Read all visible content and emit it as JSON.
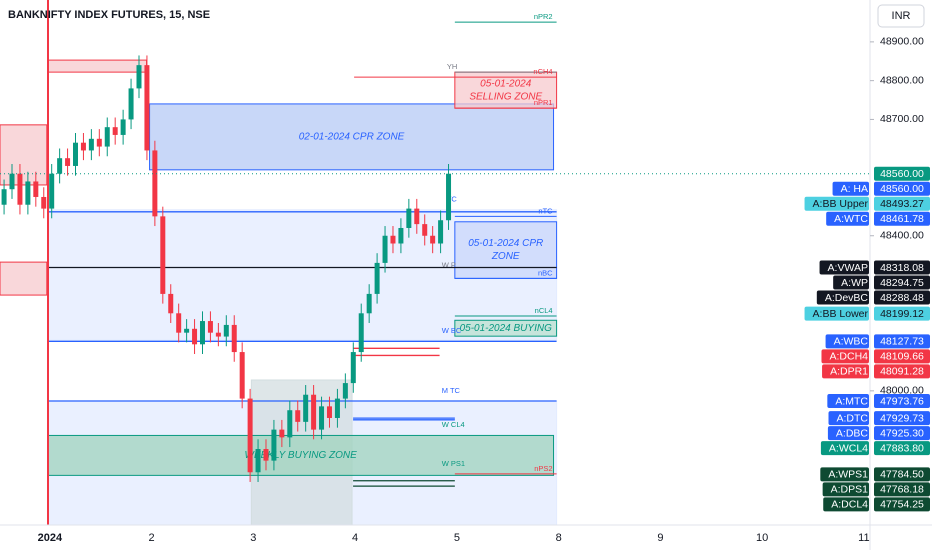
{
  "header": {
    "title": "BANKNIFTY INDEX FUTURES, 15, NSE",
    "currency": "INR"
  },
  "chart_data": {
    "type": "candlestick",
    "xlim": [
      -0.49,
      8.06
    ],
    "ylim": [
      47654,
      49008
    ],
    "xticks": [
      {
        "value": 0,
        "label": "2024"
      },
      {
        "value": 1,
        "label": "2"
      },
      {
        "value": 2,
        "label": "3"
      },
      {
        "value": 3,
        "label": "4"
      },
      {
        "value": 4,
        "label": "5"
      },
      {
        "value": 5,
        "label": "8"
      },
      {
        "value": 6,
        "label": "9"
      },
      {
        "value": 7,
        "label": "10"
      },
      {
        "value": 8,
        "label": "11"
      }
    ],
    "yticks": [
      {
        "value": 48000,
        "label": "48000.00"
      },
      {
        "value": 48400,
        "label": "48400.00"
      },
      {
        "value": 48700,
        "label": "48700.00"
      },
      {
        "value": 48800,
        "label": "48800.00"
      },
      {
        "value": 48900,
        "label": "48900.00"
      }
    ],
    "up_color": "#089981",
    "down_color": "#f23645",
    "x": [
      -0.45,
      -0.372,
      -0.294,
      -0.216,
      -0.138,
      -0.06,
      0.018,
      0.096,
      0.174,
      0.252,
      0.33,
      0.408,
      0.486,
      0.564,
      0.642,
      0.72,
      0.798,
      0.876,
      0.954,
      1.032,
      1.11,
      1.188,
      1.266,
      1.344,
      1.422,
      1.5,
      1.578,
      1.656,
      1.734,
      1.812,
      1.89,
      1.968,
      2.046,
      2.124,
      2.202,
      2.28,
      2.358,
      2.436,
      2.514,
      2.592,
      2.67,
      2.748,
      2.826,
      2.904,
      2.982,
      3.06,
      3.138,
      3.216,
      3.294,
      3.372,
      3.45,
      3.528,
      3.606,
      3.684,
      3.762,
      3.84,
      3.918
    ],
    "open": [
      48480,
      48520,
      48560,
      48480,
      48540,
      48500,
      48470,
      48560,
      48600,
      48580,
      48640,
      48620,
      48650,
      48630,
      48680,
      48660,
      48700,
      48780,
      48840,
      48620,
      48450,
      48250,
      48200,
      48150,
      48160,
      48120,
      48180,
      48150,
      48140,
      48170,
      48100,
      47980,
      47790,
      47850,
      47820,
      47900,
      47880,
      47950,
      47920,
      47990,
      47900,
      47960,
      47930,
      47980,
      48020,
      48100,
      48200,
      48250,
      48330,
      48400,
      48380,
      48420,
      48470,
      48430,
      48400,
      48380,
      48440
    ],
    "high": [
      48545,
      48585,
      48585,
      48565,
      48565,
      48525,
      48585,
      48625,
      48625,
      48665,
      48665,
      48675,
      48675,
      48705,
      48705,
      48725,
      48805,
      48865,
      48865,
      48645,
      48475,
      48275,
      48225,
      48185,
      48185,
      48205,
      48205,
      48175,
      48195,
      48195,
      48125,
      48005,
      47875,
      47875,
      47925,
      47925,
      47975,
      47975,
      48015,
      48015,
      47985,
      47985,
      48005,
      48045,
      48125,
      48225,
      48275,
      48355,
      48425,
      48425,
      48445,
      48495,
      48495,
      48455,
      48425,
      48465,
      48585
    ],
    "low": [
      48455,
      48495,
      48455,
      48455,
      48475,
      48445,
      48445,
      48535,
      48555,
      48555,
      48595,
      48595,
      48605,
      48605,
      48635,
      48635,
      48675,
      48755,
      48595,
      48425,
      48225,
      48175,
      48125,
      48125,
      48095,
      48095,
      48125,
      48115,
      48115,
      48075,
      47955,
      47765,
      47765,
      47795,
      47795,
      47855,
      47855,
      47895,
      47895,
      47875,
      47875,
      47905,
      47905,
      47955,
      47995,
      48075,
      48175,
      48225,
      48305,
      48355,
      48355,
      48395,
      48405,
      48375,
      48355,
      48355,
      48415
    ],
    "close": [
      48520,
      48560,
      48480,
      48540,
      48500,
      48470,
      48560,
      48600,
      48580,
      48640,
      48620,
      48650,
      48630,
      48680,
      48660,
      48700,
      48780,
      48840,
      48620,
      48450,
      48250,
      48200,
      48150,
      48160,
      48120,
      48180,
      48150,
      48140,
      48170,
      48100,
      47980,
      47790,
      47850,
      47820,
      47900,
      47880,
      47950,
      47920,
      47990,
      47900,
      47960,
      47930,
      47980,
      48020,
      48100,
      48200,
      48250,
      48330,
      48400,
      48380,
      48420,
      48470,
      48430,
      48400,
      48380,
      48440,
      48560
    ],
    "zones": [
      {
        "low": 47654,
        "high": 47974,
        "x": [
          -0.02,
          4.98
        ],
        "fill": "#e3ebff",
        "stroke": "#e3ebff"
      },
      {
        "low": 48131,
        "high": 48467,
        "x": [
          -0.02,
          4.98
        ],
        "fill": "#e3ebff",
        "stroke": "#e3ebff"
      },
      {
        "low": 47654,
        "high": 48028,
        "x": [
          1.98,
          2.97
        ],
        "fill": "#d3dde0",
        "stroke": "#d3dde0"
      },
      {
        "low": 48531,
        "high": 48686,
        "x": [
          -0.49,
          -0.03
        ],
        "fill": "#f7c9cd",
        "stroke": "#f23645"
      },
      {
        "low": 48247,
        "high": 48332,
        "x": [
          -0.49,
          -0.03
        ],
        "fill": "#f7c9cd",
        "stroke": "#f23645"
      },
      {
        "low": 48822,
        "high": 48853,
        "x": [
          -0.02,
          0.95
        ],
        "fill": "#f7c9cd",
        "stroke": "#f23645"
      },
      {
        "low": 48570,
        "high": 48740,
        "x": [
          0.98,
          4.95
        ],
        "fill": "#b6c9f5",
        "stroke": "#2962ff",
        "label": [
          "02-01-2024 CPR ZONE"
        ],
        "text_color": "#2962ff"
      },
      {
        "low": 48729,
        "high": 48822,
        "x": [
          3.98,
          4.98
        ],
        "fill": "#f7c9cd",
        "stroke": "#f23645",
        "label": [
          "05-01-2024",
          "SELLING ZONE"
        ],
        "text_color": "#f23645"
      },
      {
        "low": 48290,
        "high": 48436,
        "x": [
          3.98,
          4.98
        ],
        "fill": "#c9d7fb",
        "stroke": "#2962ff",
        "label": [
          "05-01-2024 CPR",
          "ZONE"
        ],
        "text_color": "#2962ff"
      },
      {
        "low": 48141,
        "high": 48182,
        "x": [
          3.98,
          4.98
        ],
        "fill": "#b9e0cf",
        "stroke": "#089981",
        "label": [
          "05-01-2024 BUYING"
        ],
        "text_color": "#089981"
      },
      {
        "low": 47782,
        "high": 47885,
        "x": [
          -0.02,
          4.95
        ],
        "fill": "#9fd3bd",
        "stroke": "#089981",
        "label": [
          "WEEKLY BUYING ZONE"
        ],
        "text_color": "#089981"
      }
    ],
    "levels": [
      {
        "name": "nPR2",
        "price": 48951,
        "x": [
          3.98,
          4.98
        ],
        "color": "#089981",
        "side": "right"
      },
      {
        "name": "YH",
        "price": 48822,
        "x": [
          3.98,
          4.98
        ],
        "color": "#787b86",
        "side": "left"
      },
      {
        "name": "nCH4",
        "price": 48809,
        "x": [
          2.99,
          4.98
        ],
        "color": "#f23645",
        "side": "right"
      },
      {
        "name": "nPR1",
        "price": 48729,
        "x": [
          3.98,
          4.98
        ],
        "color": "#f23645",
        "side": "right"
      },
      {
        "name": "TC",
        "price": 48480,
        "x": [
          3.98,
          3.98
        ],
        "color": "#2962ff",
        "side": "left"
      },
      {
        "name": "nTC",
        "price": 48450,
        "x": [
          3.98,
          4.98
        ],
        "color": "#2962ff",
        "side": "right"
      },
      {
        "name": "W P",
        "price": 48310,
        "x": [
          3.93,
          3.93
        ],
        "color": "#787b86",
        "side": "left"
      },
      {
        "name": "nBC",
        "price": 48290,
        "x": [
          3.98,
          4.98
        ],
        "color": "#2962ff",
        "side": "right"
      },
      {
        "name": "nCL4",
        "price": 48193,
        "x": [
          3.98,
          4.98
        ],
        "color": "#089981",
        "side": "right"
      },
      {
        "name": "W BC",
        "price": 48142,
        "x": [
          3.93,
          3.93
        ],
        "color": "#2962ff",
        "side": "left"
      },
      {
        "name": "M TC",
        "price": 47987,
        "x": [
          3.93,
          3.93
        ],
        "color": "#2962ff",
        "side": "left"
      },
      {
        "name": "W CL4",
        "price": 47899,
        "x": [
          3.93,
          3.93
        ],
        "color": "#089981",
        "side": "left"
      },
      {
        "name": "W PS1",
        "price": 47799,
        "x": [
          3.93,
          3.93
        ],
        "color": "#089981",
        "side": "left"
      },
      {
        "name": "nPS2",
        "price": 47786,
        "x": [
          3.98,
          4.98
        ],
        "color": "#f23645",
        "side": "right"
      }
    ],
    "last_price": {
      "value": 48560,
      "label": "48560.00",
      "color": "#089981"
    },
    "price_labels": [
      {
        "name": "A: HA",
        "value": 48560,
        "value_label": "48560.00",
        "color": "#2962ff",
        "text_color": "#ffffff"
      },
      {
        "name": "A:BB Upper",
        "value": 48493.27,
        "value_label": "48493.27",
        "color": "#4dd0e1",
        "text_color": "#131722"
      },
      {
        "name": "A:WTC",
        "value": 48461.78,
        "value_label": "48461.78",
        "color": "#2962ff",
        "text_color": "#ffffff",
        "line": [
          -0.02,
          4.98
        ]
      },
      {
        "name": "A:VWAP",
        "value": 48318.08,
        "value_label": "48318.08",
        "color": "#131722",
        "text_color": "#ffffff",
        "line": [
          -0.02,
          4.98
        ]
      },
      {
        "name": "A:WP",
        "value": 48294.75,
        "value_label": "48294.75",
        "color": "#131722",
        "text_color": "#ffffff"
      },
      {
        "name": "A:DevBC",
        "value": 48288.48,
        "value_label": "48288.48",
        "color": "#131722",
        "text_color": "#ffffff"
      },
      {
        "name": "A:BB Lower",
        "value": 48199.12,
        "value_label": "48199.12",
        "color": "#4dd0e1",
        "text_color": "#131722"
      },
      {
        "name": "A:WBC",
        "value": 48127.73,
        "value_label": "48127.73",
        "color": "#2962ff",
        "text_color": "#ffffff",
        "line": [
          -0.02,
          4.98
        ]
      },
      {
        "name": "A:DCH4",
        "value": 48109.66,
        "value_label": "48109.66",
        "color": "#f23645",
        "text_color": "#ffffff",
        "line": [
          2.98,
          3.83
        ]
      },
      {
        "name": "A:DPR1",
        "value": 48091.28,
        "value_label": "48091.28",
        "color": "#f23645",
        "text_color": "#ffffff",
        "line": [
          2.98,
          3.83
        ]
      },
      {
        "name": "A:MTC",
        "value": 47973.76,
        "value_label": "47973.76",
        "color": "#2962ff",
        "text_color": "#ffffff",
        "line": [
          -0.02,
          4.98
        ]
      },
      {
        "name": "A:DTC",
        "value": 47929.73,
        "value_label": "47929.73",
        "color": "#2962ff",
        "text_color": "#ffffff",
        "line": [
          2.98,
          3.98
        ]
      },
      {
        "name": "A:DBC",
        "value": 47925.3,
        "value_label": "47925.30",
        "color": "#2962ff",
        "text_color": "#ffffff",
        "line": [
          2.98,
          3.98
        ]
      },
      {
        "name": "A:WCL4",
        "value": 47883.8,
        "value_label": "47883.80",
        "color": "#089981",
        "text_color": "#ffffff"
      },
      {
        "name": "A:WPS1",
        "value": 47784.5,
        "value_label": "47784.50",
        "color": "#0e4a32",
        "text_color": "#ffffff"
      },
      {
        "name": "A:DPS1",
        "value": 47768.18,
        "value_label": "47768.18",
        "color": "#0e4a32",
        "text_color": "#ffffff",
        "line": [
          2.98,
          3.98
        ]
      },
      {
        "name": "A:DCL4",
        "value": 47754.25,
        "value_label": "47754.25",
        "color": "#0e4a32",
        "text_color": "#ffffff",
        "line": [
          2.98,
          3.98
        ]
      }
    ]
  }
}
